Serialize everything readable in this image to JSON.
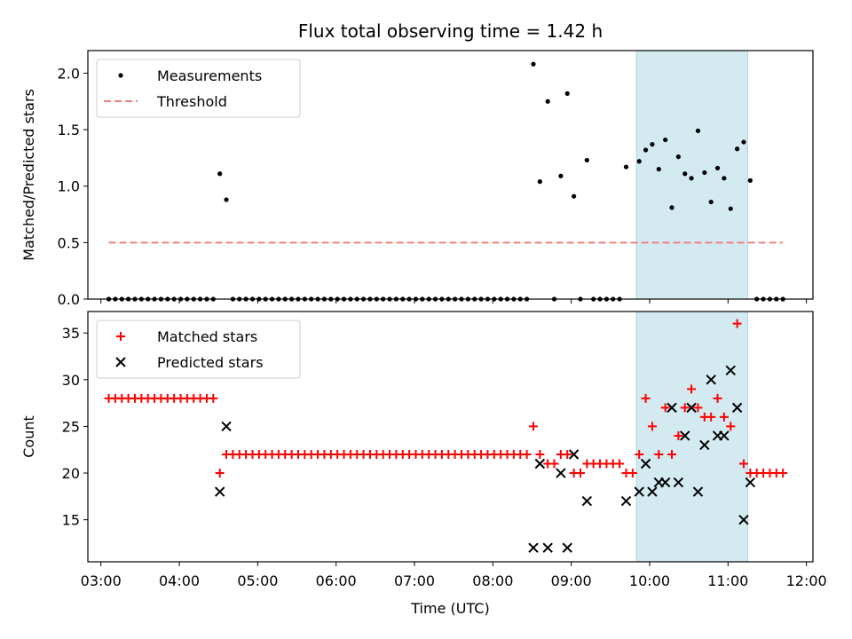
{
  "chart_data": [
    {
      "type": "scatter",
      "title": "Flux total observing time = 1.42 h",
      "xlabel": "",
      "ylabel": "Matched/Predicted stars",
      "xlim": [
        "02:50",
        "12:05"
      ],
      "ylim": [
        0,
        2.2
      ],
      "yticks": [
        "0.0",
        "0.5",
        "1.0",
        "1.5",
        "2.0"
      ],
      "legend_position": "top-left",
      "shaded_span": [
        "09:50",
        "11:15"
      ],
      "shaded_color": "#d3eaf1",
      "series": [
        {
          "name": "Measurements",
          "color": "#000000",
          "marker": "dot",
          "points": [
            [
              "03:06",
              0
            ],
            [
              "03:11",
              0
            ],
            [
              "03:16",
              0
            ],
            [
              "03:21",
              0
            ],
            [
              "03:26",
              0
            ],
            [
              "03:31",
              0
            ],
            [
              "03:36",
              0
            ],
            [
              "03:41",
              0
            ],
            [
              "03:46",
              0
            ],
            [
              "03:51",
              0
            ],
            [
              "03:56",
              0
            ],
            [
              "04:01",
              0
            ],
            [
              "04:06",
              0
            ],
            [
              "04:11",
              0
            ],
            [
              "04:16",
              0
            ],
            [
              "04:21",
              0
            ],
            [
              "04:26",
              0
            ],
            [
              "04:31",
              1.11
            ],
            [
              "04:36",
              0.88
            ],
            [
              "04:41",
              0
            ],
            [
              "04:46",
              0
            ],
            [
              "04:51",
              0
            ],
            [
              "04:56",
              0
            ],
            [
              "05:01",
              0
            ],
            [
              "05:06",
              0
            ],
            [
              "05:11",
              0
            ],
            [
              "05:16",
              0
            ],
            [
              "05:21",
              0
            ],
            [
              "05:26",
              0
            ],
            [
              "05:31",
              0
            ],
            [
              "05:36",
              0
            ],
            [
              "05:41",
              0
            ],
            [
              "05:46",
              0
            ],
            [
              "05:51",
              0
            ],
            [
              "05:56",
              0
            ],
            [
              "06:01",
              0
            ],
            [
              "06:06",
              0
            ],
            [
              "06:11",
              0
            ],
            [
              "06:16",
              0
            ],
            [
              "06:21",
              0
            ],
            [
              "06:26",
              0
            ],
            [
              "06:31",
              0
            ],
            [
              "06:36",
              0
            ],
            [
              "06:41",
              0
            ],
            [
              "06:46",
              0
            ],
            [
              "06:51",
              0
            ],
            [
              "06:56",
              0
            ],
            [
              "07:01",
              0
            ],
            [
              "07:06",
              0
            ],
            [
              "07:11",
              0
            ],
            [
              "07:16",
              0
            ],
            [
              "07:21",
              0
            ],
            [
              "07:26",
              0
            ],
            [
              "07:31",
              0
            ],
            [
              "07:36",
              0
            ],
            [
              "07:41",
              0
            ],
            [
              "07:46",
              0
            ],
            [
              "07:51",
              0
            ],
            [
              "07:56",
              0
            ],
            [
              "08:01",
              0
            ],
            [
              "08:06",
              0
            ],
            [
              "08:11",
              0
            ],
            [
              "08:16",
              0
            ],
            [
              "08:21",
              0
            ],
            [
              "08:26",
              0
            ],
            [
              "08:31",
              2.08
            ],
            [
              "08:36",
              1.04
            ],
            [
              "08:42",
              1.75
            ],
            [
              "08:47",
              0
            ],
            [
              "08:52",
              1.09
            ],
            [
              "08:57",
              1.82
            ],
            [
              "09:02",
              0.91
            ],
            [
              "09:07",
              0
            ],
            [
              "09:12",
              1.23
            ],
            [
              "09:17",
              0
            ],
            [
              "09:22",
              0
            ],
            [
              "09:27",
              0
            ],
            [
              "09:32",
              0
            ],
            [
              "09:37",
              0
            ],
            [
              "09:42",
              1.17
            ],
            [
              "09:52",
              1.22
            ],
            [
              "09:57",
              1.32
            ],
            [
              "10:02",
              1.37
            ],
            [
              "10:07",
              1.15
            ],
            [
              "10:12",
              1.41
            ],
            [
              "10:17",
              0.81
            ],
            [
              "10:22",
              1.26
            ],
            [
              "10:27",
              1.11
            ],
            [
              "10:32",
              1.07
            ],
            [
              "10:37",
              1.49
            ],
            [
              "10:42",
              1.12
            ],
            [
              "10:47",
              0.86
            ],
            [
              "10:52",
              1.16
            ],
            [
              "10:57",
              1.07
            ],
            [
              "11:02",
              0.8
            ],
            [
              "11:07",
              1.33
            ],
            [
              "11:12",
              1.39
            ],
            [
              "11:17",
              1.05
            ],
            [
              "11:22",
              0
            ],
            [
              "11:27",
              0
            ],
            [
              "11:32",
              0
            ],
            [
              "11:37",
              0
            ],
            [
              "11:42",
              0
            ]
          ]
        },
        {
          "name": "Threshold",
          "color": "#f08080",
          "style": "dashed",
          "points": [
            [
              "03:06",
              0.5
            ],
            [
              "11:42",
              0.5
            ]
          ]
        }
      ]
    },
    {
      "type": "scatter",
      "title": "",
      "xlabel": "Time (UTC)",
      "ylabel": "Count",
      "xlim": [
        "02:50",
        "12:05"
      ],
      "ylim": [
        10.5,
        37.3
      ],
      "yticks": [
        "15",
        "20",
        "25",
        "30",
        "35"
      ],
      "xticks": [
        "03:00",
        "04:00",
        "05:00",
        "06:00",
        "07:00",
        "08:00",
        "09:00",
        "10:00",
        "11:00",
        "12:00"
      ],
      "legend_position": "top-left",
      "shaded_span": [
        "09:50",
        "11:15"
      ],
      "shaded_color": "#d3eaf1",
      "series": [
        {
          "name": "Matched stars",
          "color": "#ff0000",
          "marker": "plus",
          "points": [
            [
              "03:06",
              28
            ],
            [
              "03:11",
              28
            ],
            [
              "03:16",
              28
            ],
            [
              "03:21",
              28
            ],
            [
              "03:26",
              28
            ],
            [
              "03:31",
              28
            ],
            [
              "03:36",
              28
            ],
            [
              "03:41",
              28
            ],
            [
              "03:46",
              28
            ],
            [
              "03:51",
              28
            ],
            [
              "03:56",
              28
            ],
            [
              "04:01",
              28
            ],
            [
              "04:06",
              28
            ],
            [
              "04:11",
              28
            ],
            [
              "04:16",
              28
            ],
            [
              "04:21",
              28
            ],
            [
              "04:26",
              28
            ],
            [
              "04:31",
              20
            ],
            [
              "04:36",
              22
            ],
            [
              "04:41",
              22
            ],
            [
              "04:46",
              22
            ],
            [
              "04:51",
              22
            ],
            [
              "04:56",
              22
            ],
            [
              "05:01",
              22
            ],
            [
              "05:06",
              22
            ],
            [
              "05:11",
              22
            ],
            [
              "05:16",
              22
            ],
            [
              "05:21",
              22
            ],
            [
              "05:26",
              22
            ],
            [
              "05:31",
              22
            ],
            [
              "05:36",
              22
            ],
            [
              "05:41",
              22
            ],
            [
              "05:46",
              22
            ],
            [
              "05:51",
              22
            ],
            [
              "05:56",
              22
            ],
            [
              "06:01",
              22
            ],
            [
              "06:06",
              22
            ],
            [
              "06:11",
              22
            ],
            [
              "06:16",
              22
            ],
            [
              "06:21",
              22
            ],
            [
              "06:26",
              22
            ],
            [
              "06:31",
              22
            ],
            [
              "06:36",
              22
            ],
            [
              "06:41",
              22
            ],
            [
              "06:46",
              22
            ],
            [
              "06:51",
              22
            ],
            [
              "06:56",
              22
            ],
            [
              "07:01",
              22
            ],
            [
              "07:06",
              22
            ],
            [
              "07:11",
              22
            ],
            [
              "07:16",
              22
            ],
            [
              "07:21",
              22
            ],
            [
              "07:26",
              22
            ],
            [
              "07:31",
              22
            ],
            [
              "07:36",
              22
            ],
            [
              "07:41",
              22
            ],
            [
              "07:46",
              22
            ],
            [
              "07:51",
              22
            ],
            [
              "07:56",
              22
            ],
            [
              "08:01",
              22
            ],
            [
              "08:06",
              22
            ],
            [
              "08:11",
              22
            ],
            [
              "08:16",
              22
            ],
            [
              "08:21",
              22
            ],
            [
              "08:26",
              22
            ],
            [
              "08:31",
              25
            ],
            [
              "08:36",
              22
            ],
            [
              "08:42",
              21
            ],
            [
              "08:47",
              21
            ],
            [
              "08:52",
              22
            ],
            [
              "08:57",
              22
            ],
            [
              "09:02",
              20
            ],
            [
              "09:07",
              20
            ],
            [
              "09:12",
              21
            ],
            [
              "09:17",
              21
            ],
            [
              "09:22",
              21
            ],
            [
              "09:27",
              21
            ],
            [
              "09:32",
              21
            ],
            [
              "09:37",
              21
            ],
            [
              "09:42",
              20
            ],
            [
              "09:47",
              20
            ],
            [
              "09:52",
              22
            ],
            [
              "09:57",
              28
            ],
            [
              "10:02",
              25
            ],
            [
              "10:07",
              22
            ],
            [
              "10:12",
              27
            ],
            [
              "10:17",
              22
            ],
            [
              "10:22",
              24
            ],
            [
              "10:27",
              27
            ],
            [
              "10:32",
              29
            ],
            [
              "10:37",
              27
            ],
            [
              "10:42",
              26
            ],
            [
              "10:47",
              26
            ],
            [
              "10:52",
              28
            ],
            [
              "10:57",
              26
            ],
            [
              "11:02",
              25
            ],
            [
              "11:07",
              36
            ],
            [
              "11:12",
              21
            ],
            [
              "11:17",
              20
            ],
            [
              "11:22",
              20
            ],
            [
              "11:27",
              20
            ],
            [
              "11:32",
              20
            ],
            [
              "11:37",
              20
            ],
            [
              "11:42",
              20
            ]
          ]
        },
        {
          "name": "Predicted stars",
          "color": "#000000",
          "marker": "x",
          "points": [
            [
              "04:31",
              18
            ],
            [
              "04:36",
              25
            ],
            [
              "08:31",
              12
            ],
            [
              "08:36",
              21
            ],
            [
              "08:42",
              12
            ],
            [
              "08:52",
              20
            ],
            [
              "08:57",
              12
            ],
            [
              "09:02",
              22
            ],
            [
              "09:12",
              17
            ],
            [
              "09:42",
              17
            ],
            [
              "09:52",
              18
            ],
            [
              "09:57",
              21
            ],
            [
              "10:02",
              18
            ],
            [
              "10:07",
              19
            ],
            [
              "10:12",
              19
            ],
            [
              "10:17",
              27
            ],
            [
              "10:22",
              19
            ],
            [
              "10:27",
              24
            ],
            [
              "10:32",
              27
            ],
            [
              "10:37",
              18
            ],
            [
              "10:42",
              23
            ],
            [
              "10:47",
              30
            ],
            [
              "10:52",
              24
            ],
            [
              "10:57",
              24
            ],
            [
              "11:02",
              31
            ],
            [
              "11:07",
              27
            ],
            [
              "11:12",
              15
            ],
            [
              "11:17",
              19
            ]
          ]
        }
      ]
    }
  ]
}
